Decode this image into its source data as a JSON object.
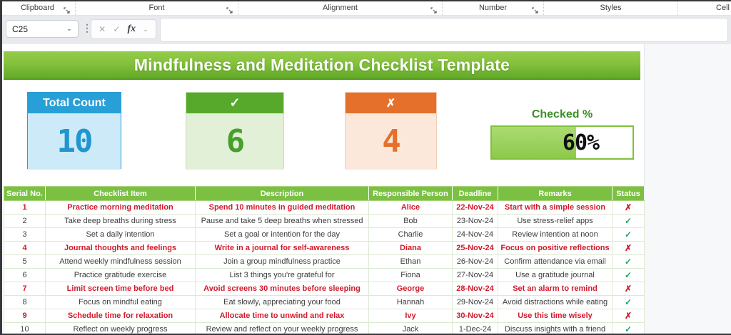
{
  "ribbon": {
    "groups": [
      "Clipboard",
      "Font",
      "Alignment",
      "Number",
      "Styles",
      "Cell"
    ]
  },
  "formula_bar": {
    "cell_reference": "C25",
    "value": ""
  },
  "icons": {
    "check": "✓",
    "cross": "✗",
    "cancel": "✕",
    "enter": "✓",
    "fx": "fx",
    "chevron_down": "⌄",
    "dots": "⋮"
  },
  "colors": {
    "banner_green": "#7bc043",
    "card_blue": "#289fd6",
    "card_green": "#57a92c",
    "card_orange": "#e4702b",
    "flag_red": "#d11a2b",
    "check_green": "#1fa565"
  },
  "banner": {
    "title": "Mindfulness and Meditation Checklist Template"
  },
  "summary_cards": {
    "total": {
      "label": "Total Count",
      "value": "10"
    },
    "checked": {
      "icon": "✓",
      "value": "6"
    },
    "unchecked": {
      "icon": "✗",
      "value": "4"
    },
    "progress": {
      "label": "Checked %",
      "value": "60%",
      "percent": 60
    }
  },
  "table": {
    "headers": [
      "Serial No.",
      "Checklist Item",
      "Description",
      "Responsible Person",
      "Deadline",
      "Remarks",
      "Status"
    ],
    "rows": [
      {
        "serial": "1",
        "item": "Practice morning meditation",
        "description": "Spend 10 minutes in guided meditation",
        "person": "Alice",
        "deadline": "22-Nov-24",
        "remarks": "Start with a simple session",
        "status": "✗",
        "flagged": true
      },
      {
        "serial": "2",
        "item": "Take deep breaths during stress",
        "description": "Pause and take 5 deep breaths when stressed",
        "person": "Bob",
        "deadline": "23-Nov-24",
        "remarks": "Use stress-relief apps",
        "status": "✓",
        "flagged": false
      },
      {
        "serial": "3",
        "item": "Set a daily intention",
        "description": "Set a goal or intention for the day",
        "person": "Charlie",
        "deadline": "24-Nov-24",
        "remarks": "Review intention at noon",
        "status": "✓",
        "flagged": false
      },
      {
        "serial": "4",
        "item": "Journal thoughts and feelings",
        "description": "Write in a journal for self-awareness",
        "person": "Diana",
        "deadline": "25-Nov-24",
        "remarks": "Focus on positive reflections",
        "status": "✗",
        "flagged": true
      },
      {
        "serial": "5",
        "item": "Attend weekly mindfulness session",
        "description": "Join a group mindfulness practice",
        "person": "Ethan",
        "deadline": "26-Nov-24",
        "remarks": "Confirm attendance via email",
        "status": "✓",
        "flagged": false
      },
      {
        "serial": "6",
        "item": "Practice gratitude exercise",
        "description": "List 3 things you're grateful for",
        "person": "Fiona",
        "deadline": "27-Nov-24",
        "remarks": "Use a gratitude journal",
        "status": "✓",
        "flagged": false
      },
      {
        "serial": "7",
        "item": "Limit screen time before bed",
        "description": "Avoid screens 30 minutes before sleeping",
        "person": "George",
        "deadline": "28-Nov-24",
        "remarks": "Set an alarm to remind",
        "status": "✗",
        "flagged": true
      },
      {
        "serial": "8",
        "item": "Focus on mindful eating",
        "description": "Eat slowly, appreciating your food",
        "person": "Hannah",
        "deadline": "29-Nov-24",
        "remarks": "Avoid distractions while eating",
        "status": "✓",
        "flagged": false
      },
      {
        "serial": "9",
        "item": "Schedule time for relaxation",
        "description": "Allocate time to unwind and relax",
        "person": "Ivy",
        "deadline": "30-Nov-24",
        "remarks": "Use this time wisely",
        "status": "✗",
        "flagged": true
      },
      {
        "serial": "10",
        "item": "Reflect on weekly progress",
        "description": "Review and reflect on your weekly progress",
        "person": "Jack",
        "deadline": "1-Dec-24",
        "remarks": "Discuss insights with a friend",
        "status": "✓",
        "flagged": false
      }
    ]
  }
}
